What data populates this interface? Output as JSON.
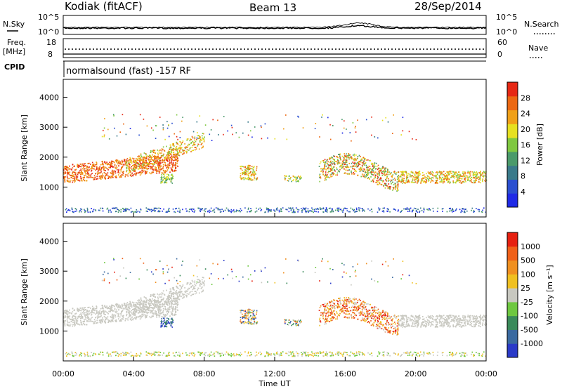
{
  "header": {
    "station": "Kodiak (fitACF)",
    "beam": "Beam 13",
    "date": "28/Sep/2014"
  },
  "noise_panel": {
    "left_label": "N.Sky",
    "right_label": "N.Search",
    "left_ticks": [
      "10^5",
      "10^0"
    ],
    "right_ticks": [
      "10^5",
      "10^0"
    ]
  },
  "freq_panel": {
    "left_label_1": "Freq.",
    "left_label_2": "[MHz]",
    "right_label": "Nave",
    "left_ticks": [
      "18",
      "8"
    ],
    "right_ticks": [
      "60",
      "0"
    ]
  },
  "cpid": {
    "label": "CPID",
    "text": "normalsound (fast) -157 RF"
  },
  "chart_data": [
    {
      "type": "heatmap",
      "name": "power",
      "ylabel": "Slant Range [km]",
      "xlabel": "Time UT",
      "ylim": [
        0,
        4600
      ],
      "yticks": [
        "1000",
        "2000",
        "3000",
        "4000"
      ],
      "xlim_hours": [
        0,
        24
      ],
      "xticks": [
        "00:00",
        "04:00",
        "08:00",
        "12:00",
        "16:00",
        "20:00",
        "00:00"
      ],
      "colorbar": {
        "label": "Power [dB]",
        "ticks": [
          "4",
          "8",
          "12",
          "16",
          "20",
          "24",
          "28"
        ],
        "colors": [
          "#1f2ae6",
          "#2a4fd0",
          "#3a7a8a",
          "#4a9a6a",
          "#7fc840",
          "#e6e020",
          "#f0a018",
          "#ec6812",
          "#e62814"
        ]
      }
    },
    {
      "type": "heatmap",
      "name": "velocity",
      "ylabel": "Slant Range [km]",
      "xlabel": "Time UT",
      "ylim": [
        0,
        4600
      ],
      "yticks": [
        "1000",
        "2000",
        "3000",
        "4000"
      ],
      "xticks": [
        "00:00",
        "04:00",
        "08:00",
        "12:00",
        "16:00",
        "20:00",
        "00:00"
      ],
      "colorbar": {
        "label": "Velocity [m s⁻¹]",
        "ticks": [
          "1000",
          "500",
          "100",
          "25",
          "-25",
          "-100",
          "-500",
          "-1000"
        ],
        "colors": [
          "#2a3ac8",
          "#3a6aa0",
          "#3a8a5a",
          "#6ec840",
          "#c8c8c0",
          "#f0c020",
          "#f09020",
          "#f06018",
          "#e62010"
        ]
      }
    }
  ],
  "xaxis": {
    "title": "Time UT"
  }
}
